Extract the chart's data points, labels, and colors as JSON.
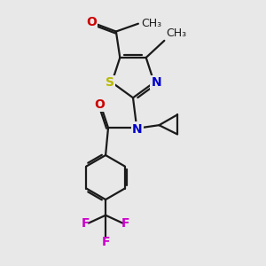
{
  "bg_color": "#e8e8e8",
  "bond_color": "#1a1a1a",
  "sulfur_color": "#b8b800",
  "nitrogen_color": "#0000cc",
  "oxygen_color": "#cc0000",
  "fluorine_color": "#cc00cc",
  "figsize": [
    3.0,
    3.0
  ],
  "dpi": 100,
  "xlim": [
    0,
    10
  ],
  "ylim": [
    0,
    10
  ]
}
